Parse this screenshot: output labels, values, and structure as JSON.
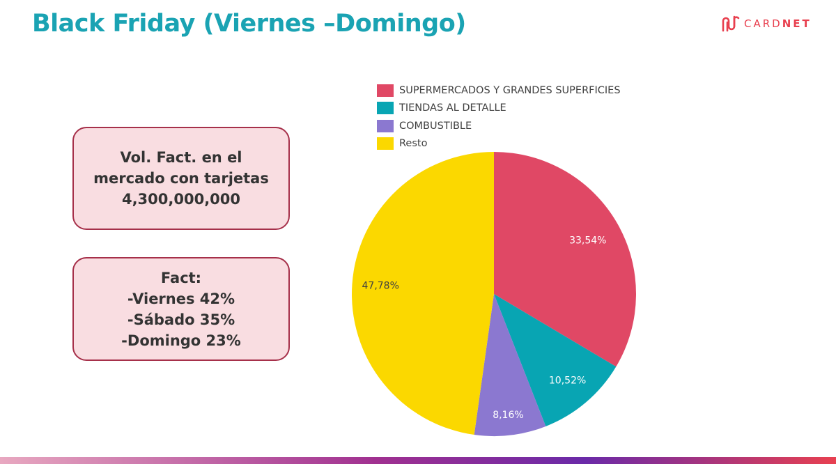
{
  "slide": {
    "title": "Black Friday (Viernes –Domingo)"
  },
  "logo": {
    "text_light": "CARD",
    "text_bold": "NET",
    "icon": "cardnet-logo-icon"
  },
  "boxes": {
    "volume": {
      "lines": [
        "Vol. Fact. en el",
        "mercado con tarjetas",
        "4,300,000,000"
      ]
    },
    "fact": {
      "lines": [
        "Fact:",
        "-Viernes 42%",
        "-Sábado 35%",
        "-Domingo 23%"
      ]
    }
  },
  "colors": {
    "title": "#1aa3b3",
    "box_fill": "#f9dde1",
    "box_border": "#a6304a"
  },
  "chart_data": {
    "type": "pie",
    "title": "",
    "legend_position": "top",
    "slices": [
      {
        "label": "SUPERMERCADOS Y GRANDES SUPERFICIES",
        "value": 33.54,
        "display": "33,54%",
        "color": "#e04865",
        "label_color": "#ffffff"
      },
      {
        "label": "TIENDAS AL DETALLE",
        "value": 10.52,
        "display": "10,52%",
        "color": "#08a5b3",
        "label_color": "#ffffff"
      },
      {
        "label": "COMBUSTIBLE",
        "value": 8.16,
        "display": "8,16%",
        "color": "#8b78d0",
        "label_color": "#ffffff"
      },
      {
        "label": "Resto",
        "value": 47.78,
        "display": "47,78%",
        "color": "#fbd800",
        "label_color": "#404040"
      }
    ]
  }
}
